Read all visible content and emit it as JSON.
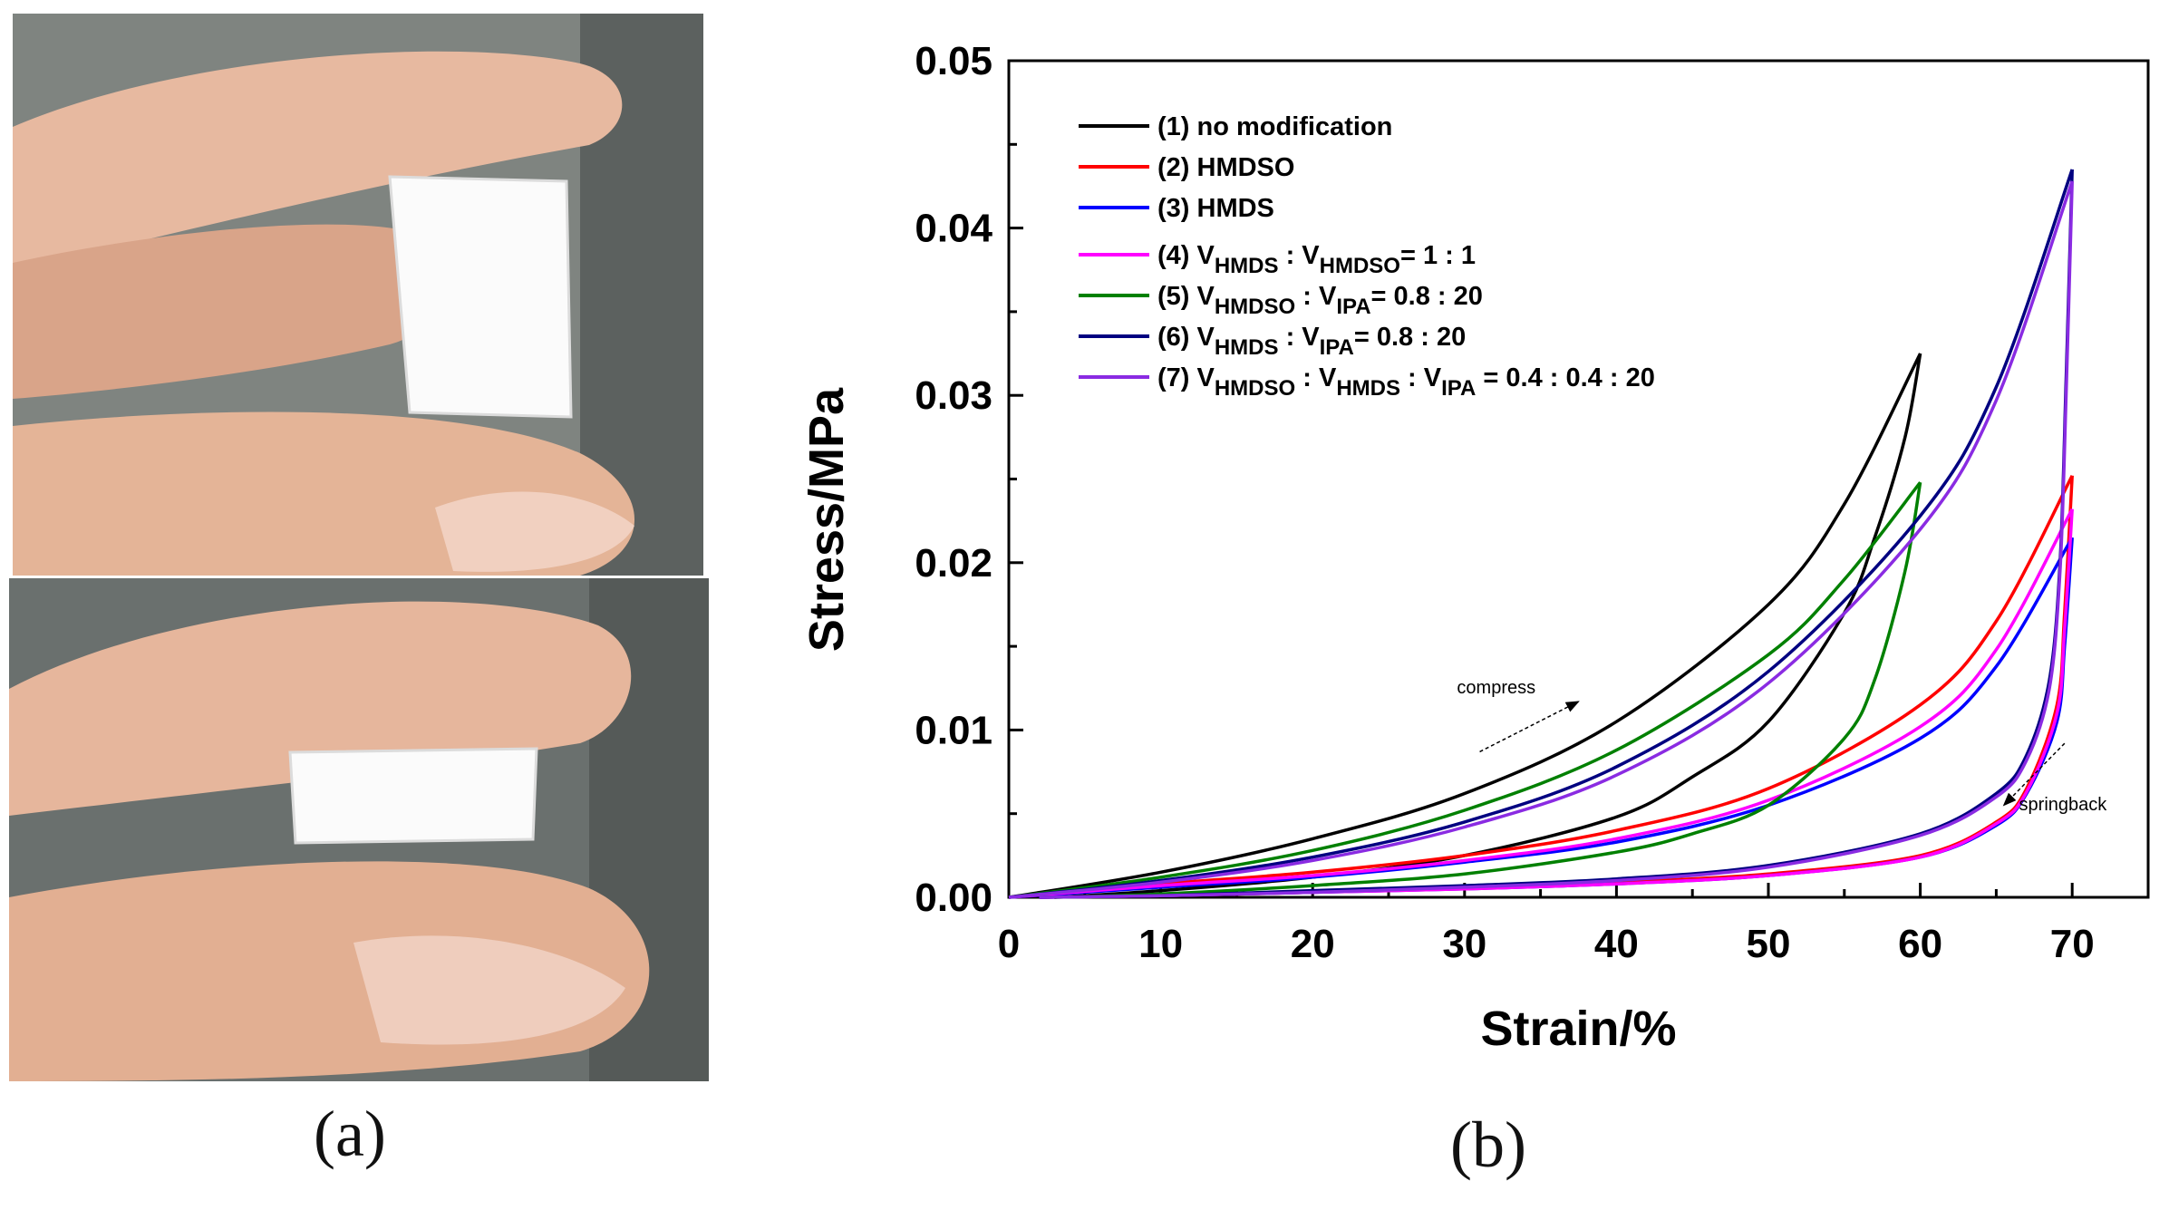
{
  "figure": {
    "panel_a_label": "(a)",
    "panel_b_label": "(b)"
  },
  "chart_data": {
    "type": "line",
    "xlabel": "Strain/%",
    "ylabel": "Stress/MPa",
    "xlim": [
      0,
      75
    ],
    "ylim": [
      0,
      0.05
    ],
    "x_ticks": [
      0,
      10,
      20,
      30,
      40,
      50,
      60,
      70
    ],
    "x_tick_labels": [
      "0",
      "10",
      "20",
      "30",
      "40",
      "50",
      "60",
      "70"
    ],
    "y_ticks": [
      0,
      0.01,
      0.02,
      0.03,
      0.04,
      0.05
    ],
    "y_tick_labels": [
      "0.00",
      "0.01",
      "0.02",
      "0.03",
      "0.04",
      "0.05"
    ],
    "legend": {
      "position": "top-left",
      "entries": [
        {
          "id": "s1",
          "plain": "(1) no modification"
        },
        {
          "id": "s2",
          "plain": "(2) HMDSO"
        },
        {
          "id": "s3",
          "plain": "(3) HMDS"
        },
        {
          "id": "s4",
          "parts": [
            {
              "t": "(4) V"
            },
            {
              "sub": "HMDS"
            },
            {
              "t": " : V"
            },
            {
              "sub": "HMDSO"
            },
            {
              "t": "= 1 : 1"
            }
          ]
        },
        {
          "id": "s5",
          "parts": [
            {
              "t": "(5) V"
            },
            {
              "sub": "HMDSO"
            },
            {
              "t": " : V"
            },
            {
              "sub": "IPA"
            },
            {
              "t": "= 0.8 : 20"
            }
          ]
        },
        {
          "id": "s6",
          "parts": [
            {
              "t": "(6) V"
            },
            {
              "sub": "HMDS"
            },
            {
              "t": " : V"
            },
            {
              "sub": "IPA"
            },
            {
              "t": "= 0.8 : 20"
            }
          ]
        },
        {
          "id": "s7",
          "parts": [
            {
              "t": "(7) V"
            },
            {
              "sub": "HMDSO"
            },
            {
              "t": " : V"
            },
            {
              "sub": "HMDS"
            },
            {
              "t": " : V"
            },
            {
              "sub": "IPA"
            },
            {
              "t": " = 0.4 : 0.4 : 20"
            }
          ]
        }
      ]
    },
    "annotations": [
      {
        "text": "compress",
        "arrow_from": [
          31,
          0.0087
        ],
        "arrow_to": [
          37.5,
          0.0117
        ],
        "text_at": [
          29.5,
          0.0122
        ]
      },
      {
        "text": "springback",
        "arrow_from": [
          69.5,
          0.0092
        ],
        "arrow_to": [
          65.5,
          0.0055
        ],
        "text_at": [
          66.5,
          0.0052
        ]
      }
    ],
    "series": [
      {
        "id": "s1",
        "name": "(1) no modification",
        "color": "#000000",
        "loading": {
          "x": [
            0,
            10,
            20,
            30,
            40,
            50,
            55,
            60
          ],
          "y": [
            0,
            0.0015,
            0.0035,
            0.0062,
            0.0105,
            0.0175,
            0.0235,
            0.0325
          ]
        },
        "unloading": {
          "x": [
            60,
            59,
            57,
            55,
            50,
            45,
            40,
            30,
            20,
            10,
            3
          ],
          "y": [
            0.0325,
            0.0275,
            0.0215,
            0.017,
            0.0105,
            0.0072,
            0.0048,
            0.0025,
            0.0012,
            0.0004,
            0
          ]
        }
      },
      {
        "id": "s2",
        "name": "(2) HMDSO",
        "color": "#ff0000",
        "loading": {
          "x": [
            0,
            10,
            20,
            30,
            40,
            50,
            60,
            65,
            70
          ],
          "y": [
            0,
            0.0008,
            0.0015,
            0.0025,
            0.004,
            0.0065,
            0.0115,
            0.0165,
            0.0252
          ]
        },
        "unloading": {
          "x": [
            70,
            69.5,
            69,
            67,
            65,
            60,
            50,
            40,
            30,
            20,
            10,
            2
          ],
          "y": [
            0.0252,
            0.017,
            0.0115,
            0.0065,
            0.0045,
            0.0025,
            0.0014,
            0.0009,
            0.0006,
            0.0003,
            0.0001,
            0
          ]
        }
      },
      {
        "id": "s3",
        "name": "(3) HMDS",
        "color": "#0000ff",
        "loading": {
          "x": [
            0,
            10,
            20,
            30,
            40,
            50,
            60,
            65,
            70
          ],
          "y": [
            0,
            0.0006,
            0.0012,
            0.0021,
            0.0033,
            0.0055,
            0.0095,
            0.0138,
            0.0215
          ]
        },
        "unloading": {
          "x": [
            70,
            69.5,
            69,
            67,
            65,
            60,
            50,
            40,
            30,
            20,
            10,
            2
          ],
          "y": [
            0.0215,
            0.015,
            0.0105,
            0.0062,
            0.0043,
            0.0024,
            0.0013,
            0.0008,
            0.0005,
            0.0003,
            0.0001,
            0
          ]
        }
      },
      {
        "id": "s4",
        "name": "(4) VHMDS : VHMDSO = 1 : 1",
        "color": "#ff00ff",
        "loading": {
          "x": [
            0,
            10,
            20,
            30,
            40,
            50,
            60,
            65,
            70
          ],
          "y": [
            0,
            0.0007,
            0.0013,
            0.0022,
            0.0035,
            0.0058,
            0.0102,
            0.0148,
            0.0232
          ]
        },
        "unloading": {
          "x": [
            70,
            69.5,
            69,
            67,
            65,
            60,
            50,
            40,
            30,
            20,
            10,
            2
          ],
          "y": [
            0.0232,
            0.016,
            0.011,
            0.0063,
            0.0044,
            0.0024,
            0.0013,
            0.0008,
            0.0005,
            0.0003,
            0.0001,
            0
          ]
        }
      },
      {
        "id": "s5",
        "name": "(5) VHMDSO : VIPA = 0.8 : 20",
        "color": "#008000",
        "loading": {
          "x": [
            0,
            10,
            20,
            30,
            40,
            50,
            55,
            60
          ],
          "y": [
            0,
            0.0012,
            0.0028,
            0.0052,
            0.0088,
            0.0145,
            0.019,
            0.0248
          ]
        },
        "unloading": {
          "x": [
            60,
            59,
            57,
            55,
            50,
            45,
            40,
            30,
            20,
            10,
            3
          ],
          "y": [
            0.0248,
            0.0195,
            0.013,
            0.0095,
            0.0055,
            0.0038,
            0.0027,
            0.0014,
            0.0007,
            0.0002,
            0
          ]
        }
      },
      {
        "id": "s6",
        "name": "(6) VHMDS : VIPA = 0.8 : 20",
        "color": "#000080",
        "loading": {
          "x": [
            0,
            10,
            20,
            30,
            40,
            50,
            60,
            65,
            70
          ],
          "y": [
            0,
            0.001,
            0.0024,
            0.0045,
            0.0078,
            0.0135,
            0.0228,
            0.0305,
            0.0435
          ]
        },
        "unloading": {
          "x": [
            70,
            69.6,
            69.2,
            68.5,
            67,
            65,
            60,
            50,
            40,
            30,
            20,
            10,
            2
          ],
          "y": [
            0.0435,
            0.031,
            0.02,
            0.013,
            0.0085,
            0.0062,
            0.0038,
            0.0019,
            0.0011,
            0.0007,
            0.0004,
            0.0001,
            0
          ]
        }
      },
      {
        "id": "s7",
        "name": "(7) VHMDSO : VHMDS : VIPA = 0.4 : 0.4 : 20",
        "color": "#8a2be2",
        "loading": {
          "x": [
            0,
            10,
            20,
            30,
            40,
            50,
            60,
            65,
            70
          ],
          "y": [
            0,
            0.0009,
            0.0022,
            0.0042,
            0.0073,
            0.0128,
            0.022,
            0.0297,
            0.0428
          ]
        },
        "unloading": {
          "x": [
            70,
            69.6,
            69.2,
            68.5,
            67,
            65,
            60,
            50,
            40,
            30,
            20,
            10,
            2
          ],
          "y": [
            0.0428,
            0.03,
            0.0195,
            0.0125,
            0.0082,
            0.006,
            0.0037,
            0.0018,
            0.001,
            0.0006,
            0.0003,
            0.0001,
            0
          ]
        }
      }
    ]
  }
}
